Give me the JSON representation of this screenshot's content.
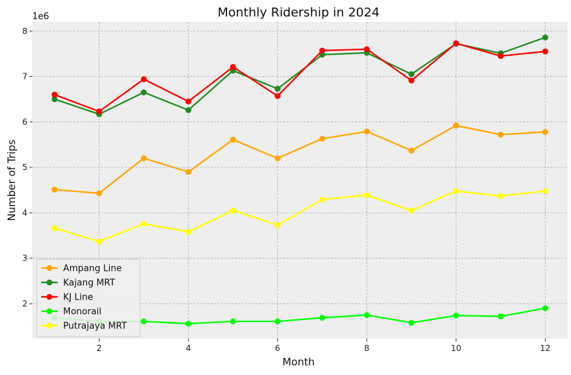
{
  "chart_data": {
    "type": "line",
    "title": "Monthly Ridership in 2024",
    "xlabel": "Month",
    "ylabel": "Number of Trips",
    "y_offset_label": "1e6",
    "xlim": [
      0.5,
      12.5
    ],
    "ylim": [
      1.23,
      8.2
    ],
    "x_ticks": [
      2,
      4,
      6,
      8,
      10,
      12
    ],
    "y_ticks": [
      2,
      3,
      4,
      5,
      6,
      7,
      8
    ],
    "grid": true,
    "legend_position": "lower-left",
    "x": [
      1,
      2,
      3,
      4,
      5,
      6,
      7,
      8,
      9,
      10,
      11,
      12
    ],
    "series": [
      {
        "name": "Ampang Line",
        "color": "#ffa500",
        "values": [
          4.51,
          4.43,
          5.2,
          4.9,
          5.61,
          5.2,
          5.63,
          5.79,
          5.37,
          5.92,
          5.72,
          5.78
        ]
      },
      {
        "name": "Kajang MRT",
        "color": "#228b22",
        "values": [
          6.5,
          6.17,
          6.65,
          6.26,
          7.13,
          6.73,
          7.48,
          7.52,
          7.05,
          7.72,
          7.51,
          7.86
        ]
      },
      {
        "name": "KJ Line",
        "color": "#ff0000",
        "values": [
          6.6,
          6.23,
          6.94,
          6.45,
          7.21,
          6.57,
          7.57,
          7.6,
          6.91,
          7.73,
          7.45,
          7.55
        ]
      },
      {
        "name": "Monorail",
        "color": "#00ff00",
        "values": [
          1.69,
          1.61,
          1.61,
          1.56,
          1.61,
          1.61,
          1.69,
          1.75,
          1.58,
          1.74,
          1.72,
          1.9
        ]
      },
      {
        "name": "Putrajaya MRT",
        "color": "#ffff00",
        "values": [
          3.66,
          3.37,
          3.76,
          3.58,
          4.05,
          3.73,
          4.29,
          4.39,
          4.05,
          4.48,
          4.37,
          4.48
        ]
      }
    ]
  }
}
